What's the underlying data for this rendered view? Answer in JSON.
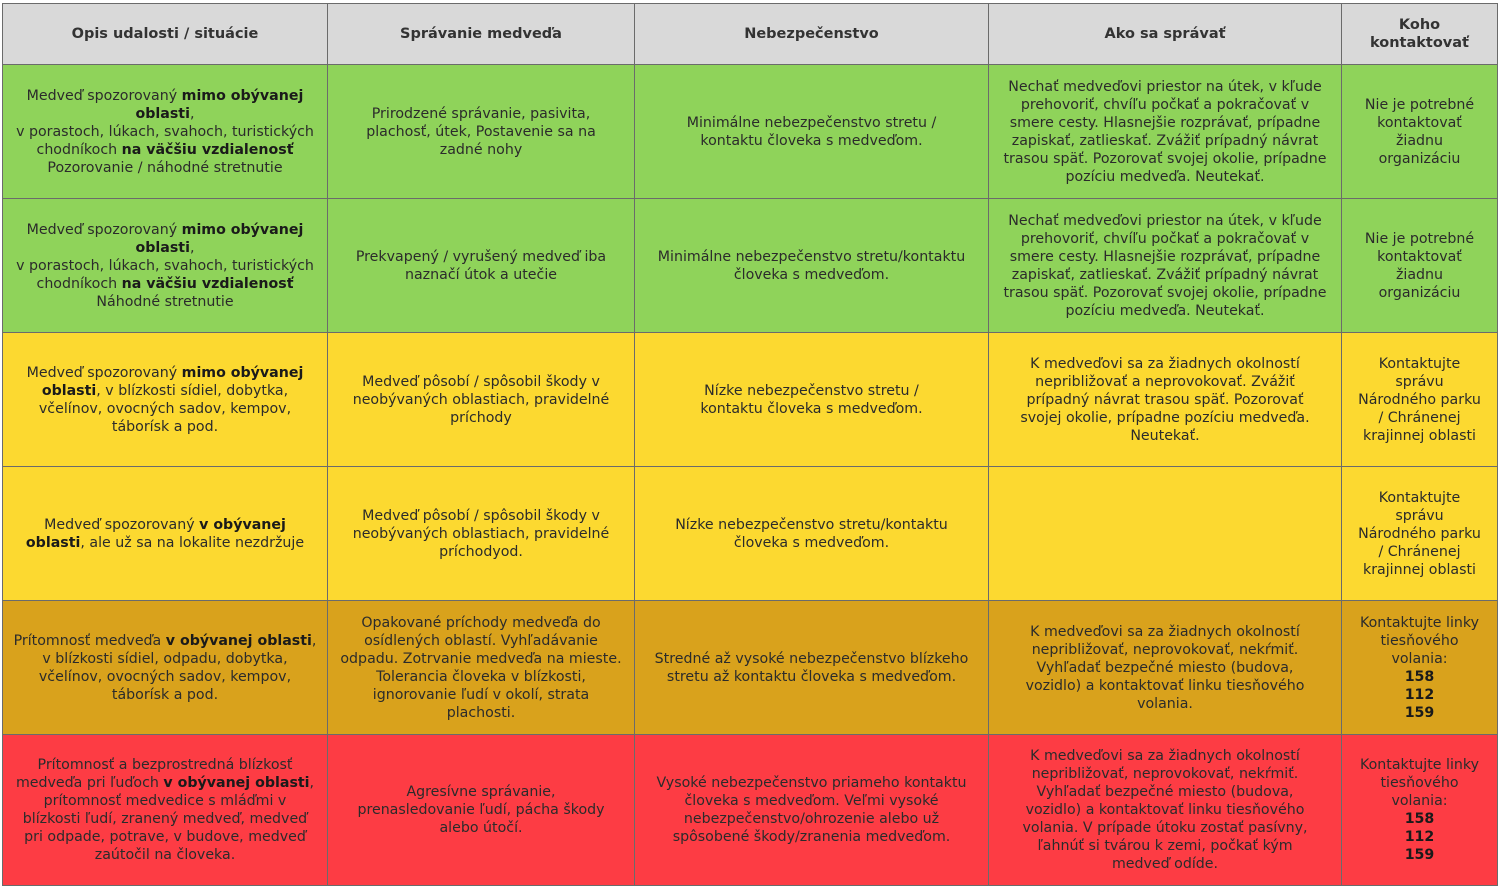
{
  "headers": [
    "Opis udalosti / situácie",
    "Správanie medveďa",
    "Nebezpečenstvo",
    "Ako sa správať",
    "Koho kontaktovať"
  ],
  "colors": {
    "header": "#d9d9d9",
    "green": "#8fd35a",
    "yellow": "#fcd930",
    "dark_yellow": "#d9a21c",
    "red": "#fd3c44"
  },
  "rows": [
    {
      "level": "green",
      "desc": {
        "t1": "Medveď spozorovaný ",
        "b1": "mimo obývanej oblasti",
        "t2": ",",
        "line2": "v porastoch, lúkach, svahoch, turistických chodníkoch ",
        "b2": "na väčšiu vzdialenosť",
        "line3": "Pozorovanie / náhodné stretnutie"
      },
      "behavior": "Prirodzené správanie, pasivita, plachosť, útek, Postavenie sa na zadné nohy",
      "danger": "Minimálne nebezpečenstvo stretu / kontaktu človeka s medveďom.",
      "action": "Nechať medveďovi priestor na útek, v kľude prehovoriť, chvíľu počkať a pokračovať v smere cesty. Hlasnejšie rozprávať, prípadne zapiskať, zatlieskať. Zvážiť prípadný návrat trasou späť. Pozorovať svojej okolie, prípadne pozíciu medveďa. Neutekať.",
      "contact": "Nie je potrebné kontaktovať žiadnu organizáciu"
    },
    {
      "level": "green",
      "desc": {
        "t1": "Medveď spozorovaný ",
        "b1": "mimo obývanej oblasti",
        "t2": ",",
        "line2": "v porastoch, lúkach, svahoch, turistických chodníkoch ",
        "b2": "na väčšiu vzdialenosť",
        "line3": "Náhodné stretnutie"
      },
      "behavior": "Prekvapený / vyrušený medveď iba naznačí útok a utečie",
      "danger": "Minimálne nebezpečenstvo stretu/kontaktu človeka s medveďom.",
      "action": "Nechať medveďovi priestor na útek, v kľude prehovoriť, chvíľu počkať a pokračovať v smere cesty. Hlasnejšie rozprávať, prípadne zapiskať, zatlieskať. Zvážiť prípadný návrat trasou späť. Pozorovať svojej okolie, prípadne pozíciu medveďa. Neutekať.",
      "contact": "Nie je potrebné kontaktovať žiadnu organizáciu"
    },
    {
      "level": "yellow",
      "desc": {
        "t1": "Medveď spozorovaný ",
        "b1": "mimo obývanej oblasti",
        "t2": ", v blízkosti sídiel, dobytka, včelínov, ovocných sadov, kempov, táborísk a pod."
      },
      "behavior": "Medveď pôsobí / spôsobil škody v neobývaných oblastiach, pravidelné príchody",
      "danger": "Nízke nebezpečenstvo stretu / kontaktu človeka s medveďom.",
      "action": "K medveďovi sa za žiadnych okolností nepribližovať a neprovokovať. Zvážiť prípadný návrat trasou späť. Pozorovať svojej okolie, prípadne pozíciu medveďa. Neutekať.",
      "contact": "Kontaktujte správu Národného parku / Chránenej krajinnej oblasti"
    },
    {
      "level": "yellow",
      "desc": {
        "t1": "Medveď spozorovaný ",
        "b1": "v obývanej oblasti",
        "t2": ", ale už sa na lokalite nezdržuje"
      },
      "behavior": "Medveď pôsobí / spôsobil škody v neobývaných oblastiach, pravidelné príchodyod.",
      "danger": "Nízke nebezpečenstvo stretu/kontaktu človeka s medveďom.",
      "action": "",
      "contact": "Kontaktujte správu Národného parku / Chránenej krajinnej oblasti"
    },
    {
      "level": "dark_yellow",
      "desc": {
        "t1": "Prítomnosť medveďa ",
        "b1": "v obývanej oblasti",
        "t2": ", v blízkosti sídiel, odpadu, dobytka, včelínov, ovocných sadov, kempov, táborísk a pod."
      },
      "behavior": "Opakované príchody medveďa do osídlených oblastí. Vyhľadávanie odpadu. Zotrvanie medveďa na mieste. Tolerancia človeka v blízkosti, ignorovanie ľudí v okolí, strata plachosti.",
      "danger": "Stredné až vysoké nebezpečenstvo blízkeho stretu až kontaktu človeka s medveďom.",
      "action": "K medveďovi sa za žiadnych okolností nepribližovať, neprovokovať, nekŕmiť. Vyhľadať bezpečné miesto (budova, vozidlo) a kontaktovať linku tiesňového volania.",
      "contact": "Kontaktujte linky tiesňového volania:",
      "numbers": [
        "158",
        "112",
        "159"
      ]
    },
    {
      "level": "red",
      "desc": {
        "t1": "Prítomnosť a bezprostredná blízkosť medveďa pri ľuďoch ",
        "b1": "v obývanej oblasti",
        "t2": ", prítomnosť medvedice s mláďmi v blízkosti ľudí, zranený medveď, medveď pri odpade, potrave, v budove, medveď zaútočil na človeka."
      },
      "behavior": "Agresívne správanie, prenasledovanie ľudí, pácha škody alebo útočí.",
      "danger": "Vysoké nebezpečenstvo priameho kontaktu človeka s medveďom. Veľmi vysoké nebezpečenstvo/ohrozenie alebo už spôsobené škody/zranenia medveďom.",
      "action": "K medveďovi sa za žiadnych okolností nepribližovať, neprovokovať, nekŕmiť. Vyhľadať bezpečné miesto (budova, vozidlo) a kontaktovať linku tiesňového volania. V prípade útoku zostať pasívny, ľahnúť si tvárou k zemi, počkať kým medveď odíde.",
      "contact": "Kontaktujte linky tiesňového volania:",
      "numbers": [
        "158",
        "112",
        "159"
      ]
    }
  ]
}
